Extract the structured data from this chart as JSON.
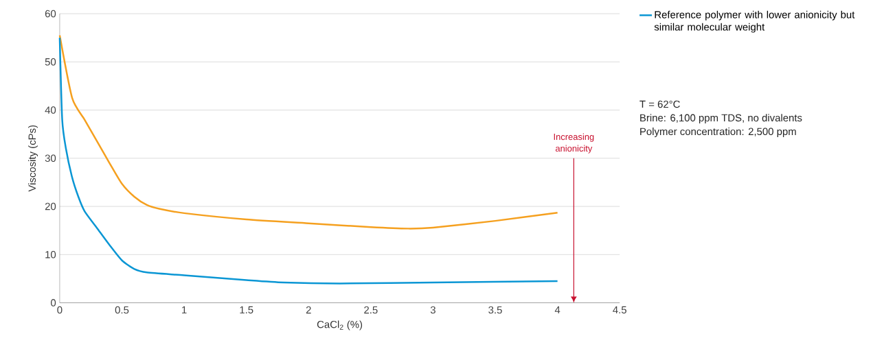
{
  "chart_data": {
    "type": "line",
    "xlabel": "CaCl$_{2}$ (%)",
    "ylabel": "Viscosity (cPs)",
    "xlim": [
      0,
      4.5
    ],
    "ylim": [
      0,
      60
    ],
    "xticks": [
      0,
      0.5,
      1,
      1.5,
      2,
      2.5,
      3,
      3.5,
      4,
      4.5
    ],
    "yticks": [
      0,
      10,
      20,
      30,
      40,
      50,
      60
    ],
    "grid": "y",
    "legend": "top right",
    "marker": "none",
    "line_style": "solid",
    "series": [
      {
        "color": "#f5a01f",
        "x": [
          0,
          0.1,
          0.2,
          0.3,
          0.4,
          0.5,
          0.6,
          0.7,
          0.8,
          1,
          1.5,
          2,
          2.5,
          2.8,
          3,
          3.5,
          4
        ],
        "values": [
          55.5,
          42.5,
          38,
          33.5,
          29,
          24.7,
          22,
          20.3,
          19.5,
          18.6,
          17.3,
          16.5,
          15.7,
          15.4,
          15.6,
          17,
          18.7
        ]
      },
      {
        "name": "Reference polymer with lower anionicity but similar molecular weight",
        "color": "#0a96d4",
        "x": [
          0,
          0.02,
          0.05,
          0.1,
          0.15,
          0.2,
          0.3,
          0.4,
          0.5,
          0.6,
          0.7,
          1,
          1.5,
          1.8,
          2.25,
          3,
          4
        ],
        "values": [
          55,
          38,
          32,
          26,
          22,
          19,
          15.5,
          12,
          8.8,
          7,
          6.3,
          5.7,
          4.7,
          4.2,
          4,
          4.2,
          4.5
        ]
      }
    ],
    "annotations": [
      "Increasing anionicity",
      "T = 62°C",
      "Brine: 6,100 ppm TDS, no divalents",
      "Polymer concentration: 2,500 ppm"
    ]
  }
}
